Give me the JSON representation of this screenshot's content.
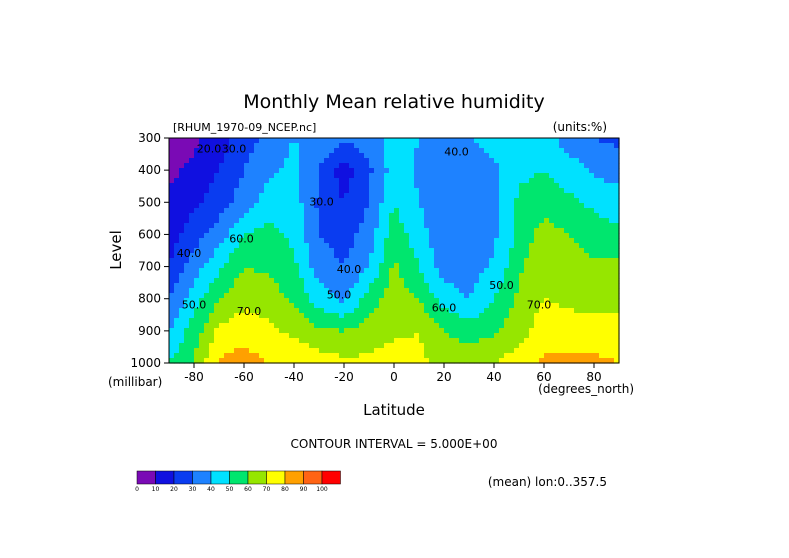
{
  "chart_data": {
    "type": "heatmap",
    "title": "Monthly Mean relative humidity",
    "file_label": "[RHUM_1970-09_NCEP.nc]",
    "units_label": "(units:%)",
    "xlabel": "Latitude",
    "x_units": "(degrees_north)",
    "ylabel": "Level",
    "y_units": "(millibar)",
    "xlim": [
      -90,
      90
    ],
    "ylim": [
      1000,
      300
    ],
    "x_ticks": [
      -80,
      -60,
      -40,
      -20,
      0,
      20,
      40,
      60,
      80
    ],
    "y_ticks": [
      300,
      400,
      500,
      600,
      700,
      800,
      900,
      1000
    ],
    "x_tick_labels": [
      "-80",
      "-60",
      "-40",
      "-20",
      "0",
      "20",
      "40",
      "60",
      "80"
    ],
    "y_tick_labels": [
      "300",
      "400",
      "500",
      "600",
      "700",
      "800",
      "900",
      "1000"
    ],
    "contour_interval_text": "CONTOUR INTERVAL = 5.000E+00",
    "mean_note": "(mean) lon:0..357.5",
    "contour_labels": [
      {
        "text": "20.0",
        "lat": -74,
        "lev": 345
      },
      {
        "text": "30.0",
        "lat": -64,
        "lev": 345
      },
      {
        "text": "40.0",
        "lat": -82,
        "lev": 670
      },
      {
        "text": "50.0",
        "lat": -80,
        "lev": 830
      },
      {
        "text": "60.0",
        "lat": -61,
        "lev": 625
      },
      {
        "text": "70.0",
        "lat": -58,
        "lev": 850
      },
      {
        "text": "30.0",
        "lat": -29,
        "lev": 510
      },
      {
        "text": "40.0",
        "lat": -18,
        "lev": 720
      },
      {
        "text": "50.0",
        "lat": -22,
        "lev": 800
      },
      {
        "text": "40.0",
        "lat": 25,
        "lev": 355
      },
      {
        "text": "50.0",
        "lat": 43,
        "lev": 770
      },
      {
        "text": "60.0",
        "lat": 20,
        "lev": 840
      },
      {
        "text": "70.0",
        "lat": 58,
        "lev": 830
      }
    ],
    "colorbar": {
      "colors": [
        "#7a0ab5",
        "#1010e0",
        "#0a3cf0",
        "#1e82ff",
        "#00e1ff",
        "#00e66e",
        "#96e600",
        "#ffff00",
        "#ffa000",
        "#ff6414",
        "#ff0000"
      ],
      "labels": [
        "0",
        "10",
        "20",
        "30",
        "40",
        "50",
        "60",
        "70",
        "80",
        "90",
        "100"
      ]
    },
    "levels": [
      300,
      400,
      500,
      600,
      700,
      800,
      900,
      1000
    ],
    "lat": [
      -90,
      -80,
      -70,
      -60,
      -50,
      -40,
      -30,
      -20,
      -10,
      0,
      10,
      20,
      30,
      40,
      50,
      60,
      70,
      80,
      90
    ],
    "values": [
      [
        4,
        8,
        15,
        25,
        33,
        40,
        38,
        32,
        35,
        45,
        40,
        38,
        40,
        45,
        50,
        45,
        35,
        30,
        28
      ],
      [
        8,
        12,
        20,
        30,
        38,
        43,
        30,
        15,
        28,
        45,
        38,
        33,
        33,
        38,
        48,
        50,
        45,
        38,
        35
      ],
      [
        12,
        18,
        25,
        35,
        45,
        45,
        28,
        20,
        30,
        50,
        40,
        30,
        30,
        35,
        52,
        55,
        52,
        48,
        45
      ],
      [
        15,
        25,
        35,
        50,
        53,
        48,
        30,
        25,
        35,
        55,
        45,
        30,
        30,
        38,
        52,
        65,
        60,
        55,
        52
      ],
      [
        20,
        35,
        48,
        60,
        58,
        52,
        35,
        30,
        40,
        62,
        50,
        35,
        35,
        42,
        58,
        68,
        65,
        62,
        62
      ],
      [
        30,
        45,
        60,
        68,
        65,
        58,
        45,
        38,
        55,
        65,
        60,
        45,
        40,
        50,
        62,
        70,
        68,
        65,
        65
      ],
      [
        40,
        55,
        72,
        75,
        72,
        68,
        62,
        60,
        65,
        68,
        70,
        60,
        55,
        58,
        66,
        75,
        75,
        75,
        75
      ],
      [
        50,
        60,
        82,
        85,
        80,
        78,
        75,
        72,
        72,
        75,
        72,
        68,
        68,
        70,
        75,
        82,
        83,
        82,
        80
      ]
    ]
  }
}
